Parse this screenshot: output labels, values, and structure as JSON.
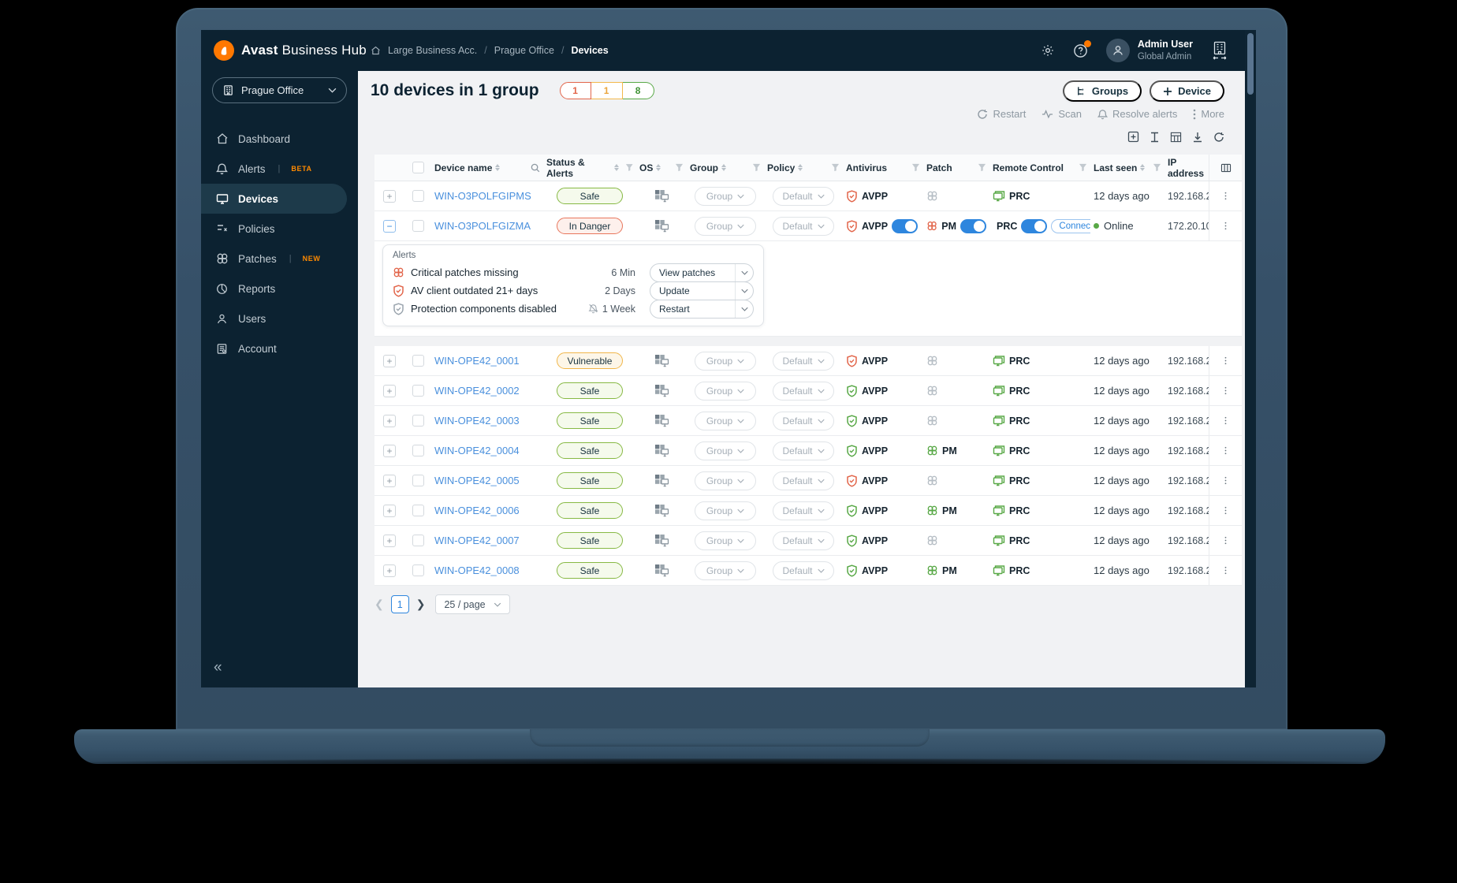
{
  "colors": {
    "brand_orange": "#ff7800",
    "accent_blue": "#2e86de",
    "link_blue": "#4a90dd",
    "green": "#58a846",
    "red": "#e2654a",
    "amber": "#f2b84b",
    "navy": "#0c2231"
  },
  "header": {
    "logo_bold": "Avast",
    "logo_rest": "Business Hub",
    "breadcrumb": [
      "Large Business Acc.",
      "Prague Office",
      "Devices"
    ],
    "user_name": "Admin User",
    "user_role": "Global Admin"
  },
  "sidebar": {
    "org": "Prague Office",
    "items": [
      {
        "label": "Dashboard",
        "icon": "home"
      },
      {
        "label": "Alerts",
        "icon": "bell",
        "badge": "BETA"
      },
      {
        "label": "Devices",
        "icon": "monitor",
        "active": true
      },
      {
        "label": "Policies",
        "icon": "policies"
      },
      {
        "label": "Patches",
        "icon": "patches",
        "badge": "NEW"
      },
      {
        "label": "Reports",
        "icon": "reports"
      },
      {
        "label": "Users",
        "icon": "users"
      },
      {
        "label": "Account",
        "icon": "account"
      }
    ]
  },
  "toolbar": {
    "title": "10 devices in 1 group",
    "counts": [
      {
        "value": "1",
        "color": "red"
      },
      {
        "value": "1",
        "color": "amber"
      },
      {
        "value": "8",
        "color": "green"
      }
    ],
    "groups_label": "Groups",
    "device_label": "Device",
    "actions": [
      "Restart",
      "Scan",
      "Resolve alerts",
      "More"
    ]
  },
  "table": {
    "columns": [
      {
        "label": "Device name",
        "sort": true,
        "search": true
      },
      {
        "label": "Status & Alerts",
        "sort": true,
        "filter": true
      },
      {
        "label": "OS",
        "sort": true,
        "filter": true
      },
      {
        "label": "Group",
        "sort": true,
        "filter": true
      },
      {
        "label": "Policy",
        "sort": true,
        "filter": true
      },
      {
        "label": "Antivirus",
        "filter": true
      },
      {
        "label": "Patch",
        "filter": true
      },
      {
        "label": "Remote Control",
        "filter": true
      },
      {
        "label": "Last seen",
        "sort": true,
        "filter": true
      },
      {
        "label": "IP address"
      }
    ],
    "group_placeholder": "Group",
    "policy_placeholder": "Default",
    "av_label": "AVPP",
    "patch_label": "PM",
    "remote_label": "PRC",
    "connect_label": "Connect",
    "rows": [
      {
        "name": "WIN-O3POLFGIPMS",
        "status": "Safe",
        "status_type": "safe",
        "av": "red",
        "patch": "none",
        "last_seen": "12 days ago",
        "ip": "192.168.2"
      },
      {
        "name": "WIN-O3POLFGIZMA",
        "status": "In Danger",
        "status_type": "danger",
        "av": "red",
        "patch": "red",
        "toggles": true,
        "connect": true,
        "online": true,
        "last_seen": "Online",
        "ip": "172.20.10",
        "expanded": true
      },
      {
        "name": "WIN-OPE42_0001",
        "status": "Vulnerable",
        "status_type": "vuln",
        "av": "red",
        "patch": "none",
        "last_seen": "12 days ago",
        "ip": "192.168.2"
      },
      {
        "name": "WIN-OPE42_0002",
        "status": "Safe",
        "status_type": "safe",
        "av": "green",
        "patch": "none",
        "last_seen": "12 days ago",
        "ip": "192.168.2"
      },
      {
        "name": "WIN-OPE42_0003",
        "status": "Safe",
        "status_type": "safe",
        "av": "green",
        "patch": "none",
        "last_seen": "12 days ago",
        "ip": "192.168.2"
      },
      {
        "name": "WIN-OPE42_0004",
        "status": "Safe",
        "status_type": "safe",
        "av": "green",
        "patch": "green",
        "last_seen": "12 days ago",
        "ip": "192.168.2"
      },
      {
        "name": "WIN-OPE42_0005",
        "status": "Safe",
        "status_type": "safe",
        "av": "red",
        "patch": "none",
        "last_seen": "12 days ago",
        "ip": "192.168.2"
      },
      {
        "name": "WIN-OPE42_0006",
        "status": "Safe",
        "status_type": "safe",
        "av": "green",
        "patch": "green",
        "last_seen": "12 days ago",
        "ip": "192.168.2"
      },
      {
        "name": "WIN-OPE42_0007",
        "status": "Safe",
        "status_type": "safe",
        "av": "green",
        "patch": "none",
        "last_seen": "12 days ago",
        "ip": "192.168.2"
      },
      {
        "name": "WIN-OPE42_0008",
        "status": "Safe",
        "status_type": "safe",
        "av": "green",
        "patch": "green",
        "last_seen": "12 days ago",
        "ip": "192.168.2"
      }
    ]
  },
  "alerts_panel": {
    "title": "Alerts",
    "items": [
      {
        "icon": "patch-red",
        "text": "Critical patches missing",
        "duration": "6 Min",
        "action": "View patches"
      },
      {
        "icon": "shield-red",
        "text": "AV client outdated 21+ days",
        "duration": "2 Days",
        "action": "Update"
      },
      {
        "icon": "shield-gray",
        "text": "Protection components disabled",
        "duration": "1 Week",
        "muted": true,
        "action": "Restart"
      }
    ]
  },
  "pagination": {
    "page": "1",
    "page_size": "25 / page"
  }
}
